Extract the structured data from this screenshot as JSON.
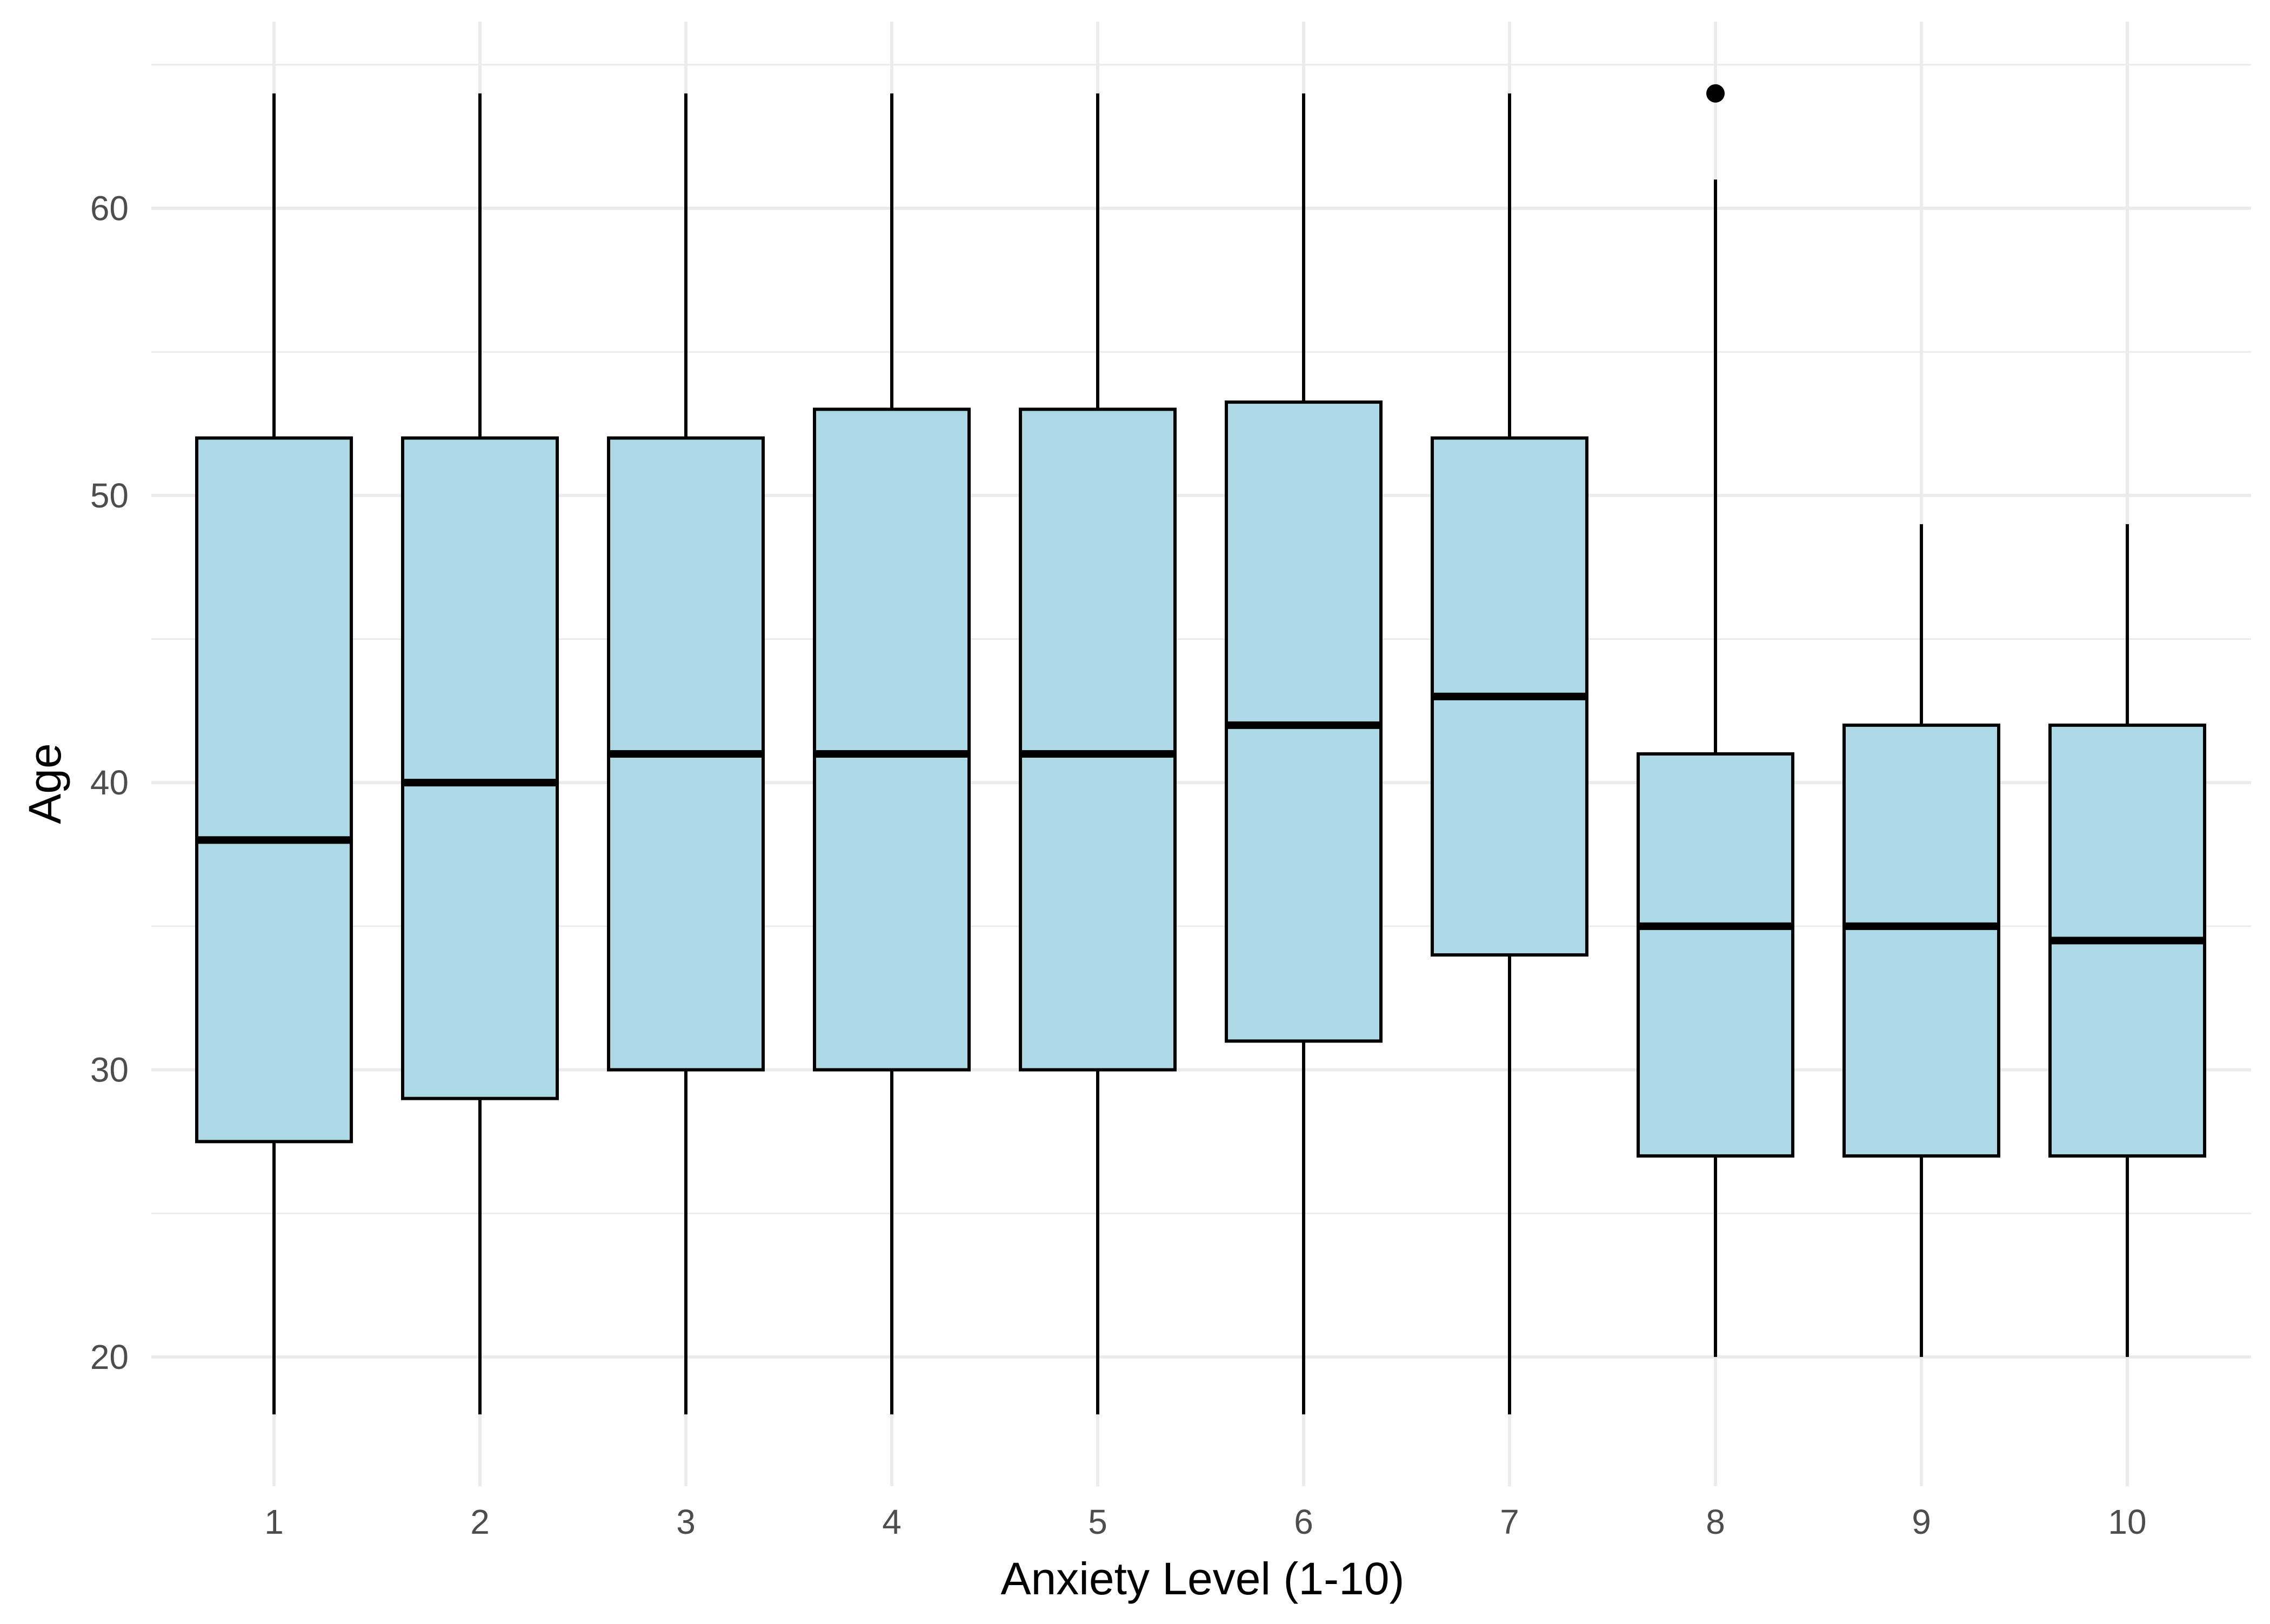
{
  "chart_data": {
    "type": "box",
    "title": "",
    "xlabel": "Anxiety Level (1-10)",
    "ylabel": "Age",
    "ylim": [
      15.5,
      66.5
    ],
    "y_ticks": [
      20,
      30,
      40,
      50,
      60
    ],
    "y_minor_ticks": [
      25,
      35,
      45,
      55,
      65
    ],
    "grid": true,
    "legend": "none",
    "box_fill": "#ADD8E6",
    "box_stroke": "#000000",
    "grid_color": "#EBEBEB",
    "categories": [
      "1",
      "2",
      "3",
      "4",
      "5",
      "6",
      "7",
      "8",
      "9",
      "10"
    ],
    "boxes": [
      {
        "category": "1",
        "whisker_low": 18,
        "q1": 27.5,
        "median": 38,
        "q3": 52,
        "whisker_high": 64,
        "outliers": []
      },
      {
        "category": "2",
        "whisker_low": 18,
        "q1": 29,
        "median": 40,
        "q3": 52,
        "whisker_high": 64,
        "outliers": []
      },
      {
        "category": "3",
        "whisker_low": 18,
        "q1": 30,
        "median": 41,
        "q3": 52,
        "whisker_high": 64,
        "outliers": []
      },
      {
        "category": "4",
        "whisker_low": 18,
        "q1": 30,
        "median": 41,
        "q3": 53,
        "whisker_high": 64,
        "outliers": []
      },
      {
        "category": "5",
        "whisker_low": 18,
        "q1": 30,
        "median": 41,
        "q3": 53,
        "whisker_high": 64,
        "outliers": []
      },
      {
        "category": "6",
        "whisker_low": 18,
        "q1": 31,
        "median": 42,
        "q3": 53.25,
        "whisker_high": 64,
        "outliers": []
      },
      {
        "category": "7",
        "whisker_low": 18,
        "q1": 34,
        "median": 43,
        "q3": 52,
        "whisker_high": 64,
        "outliers": []
      },
      {
        "category": "8",
        "whisker_low": 20,
        "q1": 27,
        "median": 35,
        "q3": 41,
        "whisker_high": 61,
        "outliers": [
          64
        ]
      },
      {
        "category": "9",
        "whisker_low": 20,
        "q1": 27,
        "median": 35,
        "q3": 42,
        "whisker_high": 49,
        "outliers": []
      },
      {
        "category": "10",
        "whisker_low": 20,
        "q1": 27,
        "median": 34.5,
        "q3": 42,
        "whisker_high": 49,
        "outliers": []
      }
    ]
  }
}
